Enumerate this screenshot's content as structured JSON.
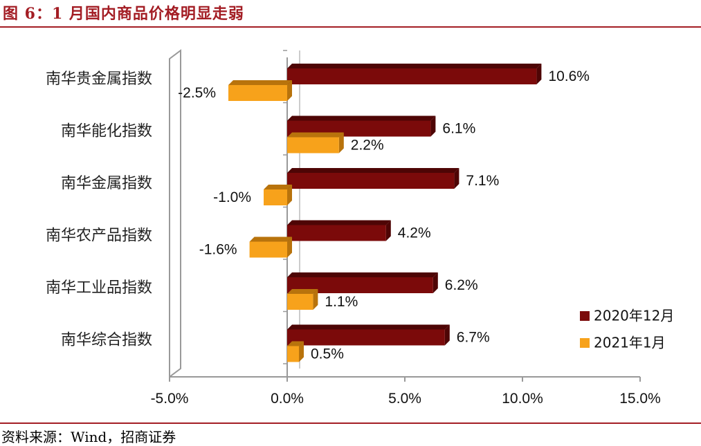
{
  "title": "图 6：1 月国内商品价格明显走弱",
  "source": "资料来源：Wind，招商证券",
  "colors": {
    "accent": "#a31d24",
    "series_2020_12": "#7b0a0a",
    "series_2020_12_side": "#4e0505",
    "series_2021_01": "#f7a21b",
    "series_2021_01_side": "#b8730c"
  },
  "chart_data": {
    "type": "bar",
    "orientation": "horizontal",
    "categories": [
      "南华贵金属指数",
      "南华能化指数",
      "南华金属指数",
      "南华农产品指数",
      "南华工业品指数",
      "南华综合指数"
    ],
    "series": [
      {
        "name": "2020年12月",
        "values": [
          10.6,
          6.1,
          7.1,
          4.2,
          6.2,
          6.7
        ],
        "labels": [
          "10.6%",
          "6.1%",
          "7.1%",
          "4.2%",
          "6.2%",
          "6.7%"
        ]
      },
      {
        "name": "2021年1月",
        "values": [
          -2.5,
          2.2,
          -1.0,
          -1.6,
          1.1,
          0.5
        ],
        "labels": [
          "-2.5%",
          "2.2%",
          "-1.0%",
          "-1.6%",
          "1.1%",
          "0.5%"
        ]
      }
    ],
    "xlim": [
      -5,
      15
    ],
    "xticks": [
      -5,
      0,
      5,
      10,
      15
    ],
    "xtick_labels": [
      "-5.0%",
      "0.0%",
      "5.0%",
      "10.0%",
      "15.0%"
    ],
    "grid": false,
    "legend_position": "bottom-right"
  }
}
